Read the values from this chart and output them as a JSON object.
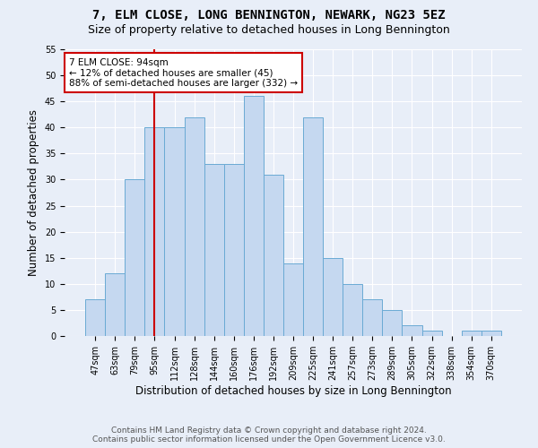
{
  "title": "7, ELM CLOSE, LONG BENNINGTON, NEWARK, NG23 5EZ",
  "subtitle": "Size of property relative to detached houses in Long Bennington",
  "xlabel": "Distribution of detached houses by size in Long Bennington",
  "ylabel": "Number of detached properties",
  "footer1": "Contains HM Land Registry data © Crown copyright and database right 2024.",
  "footer2": "Contains public sector information licensed under the Open Government Licence v3.0.",
  "categories": [
    "47sqm",
    "63sqm",
    "79sqm",
    "95sqm",
    "112sqm",
    "128sqm",
    "144sqm",
    "160sqm",
    "176sqm",
    "192sqm",
    "209sqm",
    "225sqm",
    "241sqm",
    "257sqm",
    "273sqm",
    "289sqm",
    "305sqm",
    "322sqm",
    "338sqm",
    "354sqm",
    "370sqm"
  ],
  "values": [
    7,
    12,
    30,
    40,
    40,
    42,
    33,
    33,
    46,
    31,
    14,
    42,
    15,
    10,
    7,
    5,
    2,
    1,
    0,
    1,
    1
  ],
  "bar_color": "#c5d8f0",
  "bar_edge_color": "#6aaad4",
  "vline_x_index": 3,
  "vline_color": "#cc0000",
  "annotation_line1": "7 ELM CLOSE: 94sqm",
  "annotation_line2": "← 12% of detached houses are smaller (45)",
  "annotation_line3": "88% of semi-detached houses are larger (332) →",
  "annotation_box_color": "#ffffff",
  "annotation_box_edge": "#cc0000",
  "ylim": [
    0,
    55
  ],
  "yticks": [
    0,
    5,
    10,
    15,
    20,
    25,
    30,
    35,
    40,
    45,
    50,
    55
  ],
  "bg_color": "#e8eef8",
  "plot_bg_color": "#e8eef8",
  "grid_color": "#ffffff",
  "title_fontsize": 10,
  "subtitle_fontsize": 9,
  "axis_label_fontsize": 8.5,
  "tick_fontsize": 7,
  "footer_fontsize": 6.5,
  "annotation_fontsize": 7.5
}
